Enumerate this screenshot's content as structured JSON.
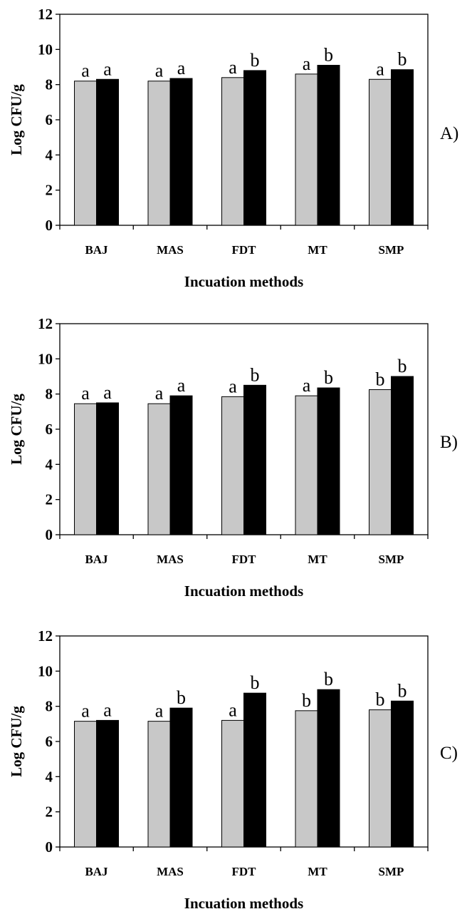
{
  "chart_data": [
    {
      "type": "bar",
      "panel_label": "A)",
      "categories": [
        "BAJ",
        "MAS",
        "FDT",
        "MT",
        "SMP"
      ],
      "series": [
        {
          "color": "#c8c8c8",
          "values": [
            8.2,
            8.2,
            8.4,
            8.6,
            8.3
          ],
          "labels": [
            "a",
            "a",
            "a",
            "a",
            "a"
          ]
        },
        {
          "color": "#000000",
          "values": [
            8.3,
            8.35,
            8.8,
            9.1,
            8.85
          ],
          "labels": [
            "a",
            "a",
            "b",
            "b",
            "b"
          ]
        }
      ],
      "xlabel": "Incuation methods",
      "ylabel": "Log CFU/g",
      "ylim": [
        0,
        12
      ],
      "yticks": [
        "0",
        "2",
        "4",
        "6",
        "8",
        "10",
        "12"
      ],
      "grid": false
    },
    {
      "type": "bar",
      "panel_label": "B)",
      "categories": [
        "BAJ",
        "MAS",
        "FDT",
        "MT",
        "SMP"
      ],
      "series": [
        {
          "color": "#c8c8c8",
          "values": [
            7.45,
            7.45,
            7.85,
            7.9,
            8.25
          ],
          "labels": [
            "a",
            "a",
            "a",
            "a",
            "b"
          ]
        },
        {
          "color": "#000000",
          "values": [
            7.5,
            7.9,
            8.5,
            8.35,
            9.0
          ],
          "labels": [
            "a",
            "a",
            "b",
            "b",
            "b"
          ]
        }
      ],
      "xlabel": "Incuation methods",
      "ylabel": "Log CFU/g",
      "ylim": [
        0,
        12
      ],
      "yticks": [
        "0",
        "2",
        "4",
        "6",
        "8",
        "10",
        "12"
      ],
      "grid": false
    },
    {
      "type": "bar",
      "panel_label": "C)",
      "categories": [
        "BAJ",
        "MAS",
        "FDT",
        "MT",
        "SMP"
      ],
      "series": [
        {
          "color": "#c8c8c8",
          "values": [
            7.15,
            7.15,
            7.2,
            7.75,
            7.8
          ],
          "labels": [
            "a",
            "a",
            "a",
            "b",
            "b"
          ]
        },
        {
          "color": "#000000",
          "values": [
            7.2,
            7.9,
            8.75,
            8.95,
            8.3
          ],
          "labels": [
            "a",
            "b",
            "b",
            "b",
            "b"
          ]
        }
      ],
      "xlabel": "Incuation methods",
      "ylabel": "Log CFU/g",
      "ylim": [
        0,
        12
      ],
      "yticks": [
        "0",
        "2",
        "4",
        "6",
        "8",
        "10",
        "12"
      ],
      "grid": false
    }
  ]
}
